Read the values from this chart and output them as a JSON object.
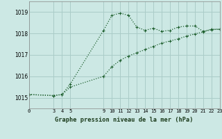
{
  "title": "Graphe pression niveau de la mer (hPa)",
  "bg_color": "#cce8e4",
  "grid_color": "#aaccc8",
  "line_color": "#1a5c2a",
  "xlim": [
    0,
    23
  ],
  "ylim": [
    1014.5,
    1019.5
  ],
  "yticks": [
    1015,
    1016,
    1017,
    1018,
    1019
  ],
  "xtick_positions": [
    0,
    3,
    4,
    5,
    9,
    10,
    11,
    12,
    13,
    14,
    15,
    16,
    17,
    18,
    19,
    20,
    21,
    22,
    23
  ],
  "xtick_labels": [
    "0",
    "3",
    "4",
    "5",
    "9",
    "10",
    "11",
    "12",
    "13",
    "14",
    "15",
    "16",
    "17",
    "18",
    "19",
    "20",
    "21",
    "22",
    "23"
  ],
  "series1_x": [
    0,
    3,
    4,
    5,
    9,
    10,
    11,
    12,
    13,
    14,
    15,
    16,
    17,
    18,
    19,
    20,
    21,
    22,
    23
  ],
  "series1_y": [
    1015.15,
    1015.1,
    1015.15,
    1015.65,
    1018.15,
    1018.85,
    1018.95,
    1018.85,
    1018.3,
    1018.15,
    1018.25,
    1018.1,
    1018.15,
    1018.3,
    1018.35,
    1018.35,
    1018.1,
    1018.2,
    1018.2
  ],
  "series2_x": [
    0,
    3,
    4,
    5,
    9,
    10,
    11,
    12,
    13,
    14,
    15,
    16,
    17,
    18,
    19,
    20,
    21,
    22,
    23
  ],
  "series2_y": [
    1015.15,
    1015.1,
    1015.15,
    1015.5,
    1016.0,
    1016.45,
    1016.75,
    1016.95,
    1017.1,
    1017.25,
    1017.4,
    1017.55,
    1017.65,
    1017.75,
    1017.88,
    1017.98,
    1018.08,
    1018.18,
    1018.2
  ]
}
